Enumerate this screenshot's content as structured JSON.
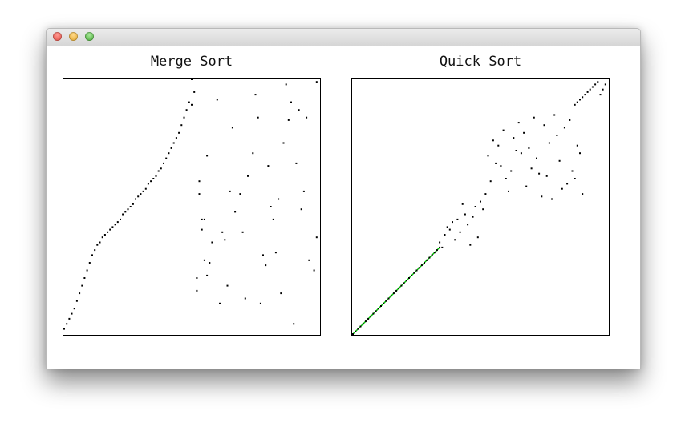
{
  "window": {
    "controls": [
      "close",
      "minimize",
      "zoom"
    ],
    "icons": {
      "close": "close-dot-icon",
      "minimize": "minimize-dot-icon",
      "zoom": "zoom-dot-icon"
    },
    "colors": {
      "close": "#e0443b",
      "minimize": "#e0a224",
      "zoom": "#3ea52d"
    }
  },
  "chart_data": [
    {
      "type": "scatter",
      "title": "Merge Sort",
      "xlim": [
        0,
        100
      ],
      "ylim": [
        0,
        100
      ],
      "grid": false,
      "colors": {
        "point": "#000000"
      },
      "series": [
        {
          "x": [
            0,
            1,
            2,
            3,
            4,
            5,
            6,
            7,
            8,
            9,
            10,
            11,
            12,
            13,
            14,
            15,
            16,
            17,
            18,
            19,
            20,
            21,
            22,
            23,
            24,
            25,
            26,
            27,
            28,
            29,
            30,
            31,
            32,
            33,
            34,
            35,
            36,
            37,
            38,
            39,
            40,
            41,
            42,
            43,
            44,
            45,
            46,
            47,
            48,
            49,
            50
          ],
          "y": [
            2,
            4,
            6,
            8,
            10,
            13,
            16,
            19,
            22,
            25,
            28,
            31,
            33,
            35,
            36,
            38,
            39,
            40,
            41,
            42,
            43,
            44,
            45,
            47,
            48,
            49,
            50,
            51,
            53,
            54,
            55,
            56,
            57,
            59,
            60,
            61,
            62,
            64,
            65,
            67,
            69,
            71,
            73,
            75,
            77,
            79,
            82,
            85,
            88,
            91,
            100
          ]
        },
        {
          "x": [
            52,
            52,
            50,
            51,
            53,
            53,
            56,
            57,
            54,
            55,
            54,
            55,
            56,
            58,
            60,
            61,
            62,
            63,
            64,
            65,
            66,
            67,
            69,
            70,
            71,
            72,
            74,
            75,
            76,
            77,
            78,
            79,
            80,
            81,
            82,
            83,
            84,
            85,
            86,
            87,
            88,
            89,
            90,
            91,
            92,
            93,
            94,
            95,
            96,
            98,
            99,
            99
          ],
          "y": [
            17,
            22,
            90,
            95,
            55,
            60,
            23,
            28,
            45,
            45,
            41,
            29,
            70,
            36,
            92,
            12,
            40,
            37,
            19,
            56,
            81,
            48,
            55,
            40,
            14,
            62,
            71,
            94,
            85,
            12,
            31,
            27,
            66,
            50,
            45,
            32,
            53,
            16,
            75,
            98,
            84,
            91,
            4,
            67,
            88,
            49,
            56,
            85,
            29,
            25,
            38,
            99
          ]
        }
      ]
    },
    {
      "type": "scatter",
      "title": "Quick Sort",
      "xlim": [
        0,
        100
      ],
      "ylim": [
        0,
        100
      ],
      "grid": false,
      "colors": {
        "point": "#000000",
        "sorted_line": "#00cc00"
      },
      "series": [
        {
          "x": [
            0,
            1,
            2,
            3,
            4,
            5,
            6,
            7,
            8,
            9,
            10,
            11,
            12,
            13,
            14,
            15,
            16,
            17,
            18,
            19,
            20,
            21,
            22,
            23,
            24,
            25,
            26,
            27,
            28,
            29,
            30,
            31,
            32,
            33,
            34
          ],
          "y": [
            0,
            1,
            2,
            3,
            4,
            5,
            6,
            7,
            8,
            9,
            10,
            11,
            12,
            13,
            14,
            15,
            16,
            17,
            18,
            19,
            20,
            21,
            22,
            23,
            24,
            25,
            26,
            27,
            28,
            29,
            30,
            31,
            32,
            33,
            34
          ]
        },
        {
          "x": [
            34,
            35,
            36,
            37,
            38,
            39,
            40,
            41,
            42,
            43,
            44,
            45,
            46,
            47,
            48,
            49,
            50,
            51,
            52,
            53,
            54,
            55,
            56,
            57,
            58,
            59,
            60,
            61,
            62,
            63,
            64,
            65,
            66,
            67,
            68,
            69,
            70,
            71,
            72,
            73,
            74,
            75,
            76,
            77,
            78,
            79,
            80,
            81,
            82,
            83,
            84,
            85,
            86,
            87,
            88,
            89,
            90
          ],
          "y": [
            36,
            34,
            39,
            42,
            41,
            44,
            37,
            45,
            40,
            51,
            47,
            43,
            35,
            46,
            50,
            38,
            52,
            49,
            55,
            70,
            60,
            76,
            67,
            74,
            66,
            80,
            61,
            56,
            64,
            77,
            72,
            83,
            71,
            79,
            58,
            73,
            65,
            85,
            69,
            63,
            54,
            82,
            62,
            75,
            53,
            86,
            78,
            68,
            57,
            81,
            59,
            84,
            64,
            61,
            74,
            71,
            55
          ]
        },
        {
          "x": [
            87,
            88,
            89,
            90,
            91,
            92,
            93,
            94,
            95,
            96,
            97,
            98,
            99
          ],
          "y": [
            90,
            91,
            92,
            93,
            94,
            95,
            96,
            97,
            98,
            99,
            94,
            96,
            98
          ]
        }
      ]
    }
  ]
}
